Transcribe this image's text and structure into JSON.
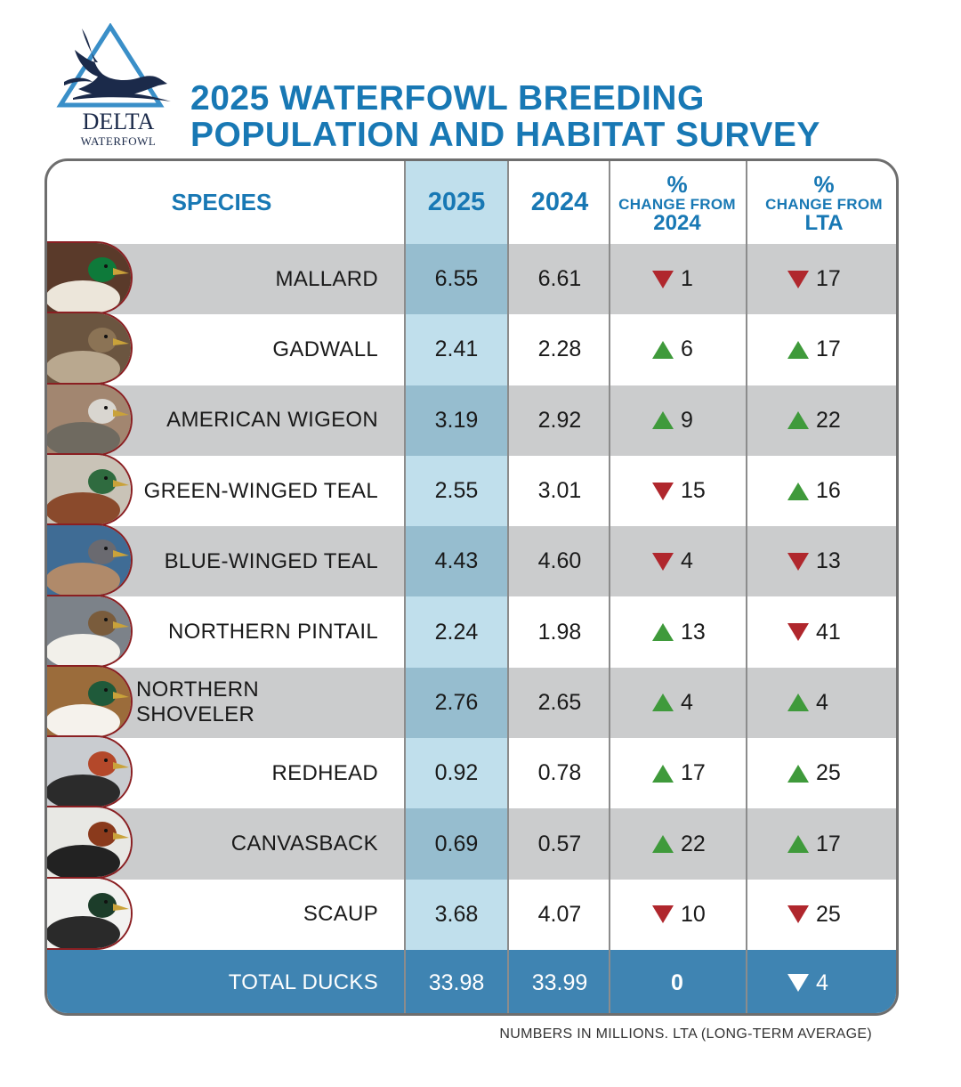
{
  "logo": {
    "word": "DELTA",
    "sub": "WATERFOWL"
  },
  "title": {
    "line1": "2025 WATERFOWL BREEDING",
    "line2": "POPULATION AND HABITAT SURVEY"
  },
  "headers": {
    "species": "SPECIES",
    "y2025": "2025",
    "y2024": "2024",
    "pct1_sym": "%",
    "pct1_label": "CHANGE FROM",
    "pct1_ref": "2024",
    "pct2_sym": "%",
    "pct2_label": "CHANGE FROM",
    "pct2_ref": "LTA"
  },
  "colors": {
    "title": "#1878b4",
    "up": "#3f9a3b",
    "down": "#b0272d",
    "gray_row": "#cbcccd",
    "highlight_col": "#c0dfec",
    "total_row": "#3f84b2"
  },
  "rows": [
    {
      "species": "MALLARD",
      "v2025": "6.55",
      "v2024": "6.61",
      "chg2024": "1",
      "dir2024": "down",
      "chgLTA": "17",
      "dirLTA": "down",
      "photo": "mallard-photo"
    },
    {
      "species": "GADWALL",
      "v2025": "2.41",
      "v2024": "2.28",
      "chg2024": "6",
      "dir2024": "up",
      "chgLTA": "17",
      "dirLTA": "up",
      "photo": "gadwall-photo"
    },
    {
      "species": "AMERICAN WIGEON",
      "v2025": "3.19",
      "v2024": "2.92",
      "chg2024": "9",
      "dir2024": "up",
      "chgLTA": "22",
      "dirLTA": "up",
      "photo": "american-wigeon-photo"
    },
    {
      "species": "GREEN-WINGED TEAL",
      "v2025": "2.55",
      "v2024": "3.01",
      "chg2024": "15",
      "dir2024": "down",
      "chgLTA": "16",
      "dirLTA": "up",
      "photo": "green-winged-teal-photo"
    },
    {
      "species": "BLUE-WINGED TEAL",
      "v2025": "4.43",
      "v2024": "4.60",
      "chg2024": "4",
      "dir2024": "down",
      "chgLTA": "13",
      "dirLTA": "down",
      "photo": "blue-winged-teal-photo"
    },
    {
      "species": "NORTHERN PINTAIL",
      "v2025": "2.24",
      "v2024": "1.98",
      "chg2024": "13",
      "dir2024": "up",
      "chgLTA": "41",
      "dirLTA": "down",
      "photo": "northern-pintail-photo"
    },
    {
      "species": "NORTHERN SHOVELER",
      "v2025": "2.76",
      "v2024": "2.65",
      "chg2024": "4",
      "dir2024": "up",
      "chgLTA": "4",
      "dirLTA": "up",
      "photo": "northern-shoveler-photo"
    },
    {
      "species": "REDHEAD",
      "v2025": "0.92",
      "v2024": "0.78",
      "chg2024": "17",
      "dir2024": "up",
      "chgLTA": "25",
      "dirLTA": "up",
      "photo": "redhead-photo"
    },
    {
      "species": "CANVASBACK",
      "v2025": "0.69",
      "v2024": "0.57",
      "chg2024": "22",
      "dir2024": "up",
      "chgLTA": "17",
      "dirLTA": "up",
      "photo": "canvasback-photo"
    },
    {
      "species": "SCAUP",
      "v2025": "3.68",
      "v2024": "4.07",
      "chg2024": "10",
      "dir2024": "down",
      "chgLTA": "25",
      "dirLTA": "down",
      "photo": "scaup-photo"
    }
  ],
  "total": {
    "label": "TOTAL DUCKS",
    "v2025": "33.98",
    "v2024": "33.99",
    "chg2024": "0",
    "chgLTA": "4",
    "dirLTA": "down"
  },
  "footnote": "NUMBERS IN MILLIONS. LTA (LONG-TERM AVERAGE)",
  "chart_data": {
    "type": "table",
    "title": "2025 WATERFOWL BREEDING POPULATION AND HABITAT SURVEY",
    "columns": [
      "SPECIES",
      "2025",
      "2024",
      "% CHANGE FROM 2024",
      "% CHANGE FROM LTA"
    ],
    "rows": [
      [
        "MALLARD",
        6.55,
        6.61,
        -1,
        -17
      ],
      [
        "GADWALL",
        2.41,
        2.28,
        6,
        17
      ],
      [
        "AMERICAN WIGEON",
        3.19,
        2.92,
        9,
        22
      ],
      [
        "GREEN-WINGED TEAL",
        2.55,
        3.01,
        -15,
        16
      ],
      [
        "BLUE-WINGED TEAL",
        4.43,
        4.6,
        -4,
        -13
      ],
      [
        "NORTHERN PINTAIL",
        2.24,
        1.98,
        13,
        -41
      ],
      [
        "NORTHERN SHOVELER",
        2.76,
        2.65,
        4,
        4
      ],
      [
        "REDHEAD",
        0.92,
        0.78,
        17,
        25
      ],
      [
        "CANVASBACK",
        0.69,
        0.57,
        22,
        17
      ],
      [
        "SCAUP",
        3.68,
        4.07,
        -10,
        -25
      ],
      [
        "TOTAL DUCKS",
        33.98,
        33.99,
        0,
        -4
      ]
    ]
  }
}
